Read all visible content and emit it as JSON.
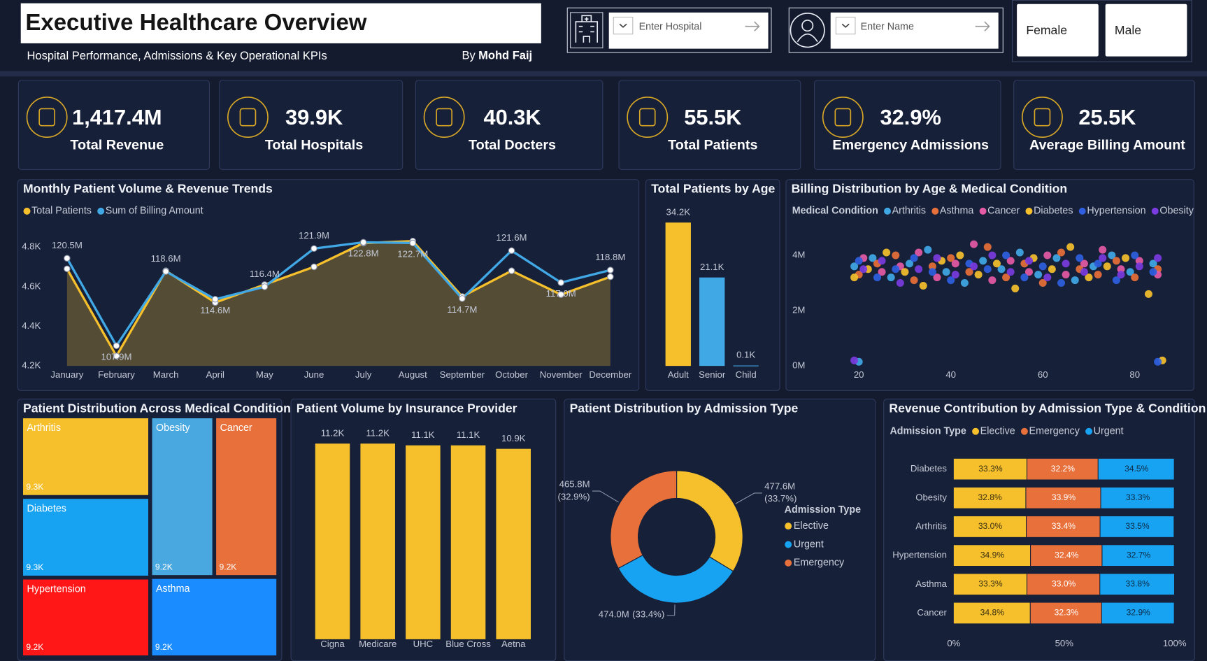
{
  "header": {
    "title": "Executive Healthcare Overview",
    "subtitle": "Hospital Performance, Admissions & Key Operational KPIs",
    "byline": "By",
    "author": "Mohd Faij"
  },
  "filters": {
    "hospital": "Enter Hospital",
    "name": "Enter Name",
    "gender": [
      "Female",
      "Male"
    ]
  },
  "kpis": [
    {
      "value": "1,417.4M",
      "label": "Total Revenue"
    },
    {
      "value": "39.9K",
      "label": "Total Hospitals"
    },
    {
      "value": "40.3K",
      "label": "Total Docters"
    },
    {
      "value": "55.5K",
      "label": "Total Patients"
    },
    {
      "value": "32.9%",
      "label": "Emergency Admissions"
    },
    {
      "value": "25.5K",
      "label": "Average Billing Amount"
    }
  ],
  "chart_data": [
    {
      "type": "line",
      "title": "Monthly Patient Volume & Revenue Trends",
      "categories": [
        "January",
        "February",
        "March",
        "April",
        "May",
        "June",
        "July",
        "August",
        "September",
        "October",
        "November",
        "December"
      ],
      "series": [
        {
          "name": "Total Patients",
          "color": "#f5c02c",
          "area": true,
          "values": [
            4690,
            4250,
            4680,
            4520,
            4610,
            4700,
            4820,
            4830,
            4550,
            4680,
            4560,
            4650
          ]
        },
        {
          "name": "Sum of Billing Amount",
          "color": "#41a8e6",
          "axis": "y2",
          "values": [
            120.5,
            107.9,
            118.6,
            114.6,
            116.4,
            121.9,
            122.8,
            122.7,
            114.7,
            121.6,
            117.0,
            118.8
          ],
          "value_labels": [
            "120.5M",
            "107.9M",
            "118.6M",
            "114.6M",
            "116.4M",
            "121.9M",
            "122.8M",
            "122.7M",
            "114.7M",
            "121.6M",
            "117.0M",
            "118.8M"
          ]
        }
      ],
      "ylim": [
        4200,
        4880
      ],
      "yticks": [
        {
          "value": 4200,
          "label": "4.2K"
        },
        {
          "value": 4400,
          "label": "4.4K"
        },
        {
          "value": 4600,
          "label": "4.6K"
        },
        {
          "value": 4800,
          "label": "4.8K"
        }
      ],
      "y2lim": [
        105,
        124.4
      ]
    },
    {
      "type": "bar",
      "title": "Total Patients by Age",
      "categories": [
        "Adult",
        "Senior",
        "Child"
      ],
      "values": [
        34200,
        21100,
        100
      ],
      "value_labels": [
        "34.2K",
        "21.1K",
        "0.1K"
      ],
      "colors": [
        "#f5c02c",
        "#41a8e6",
        "#41a8e6"
      ],
      "ylim": [
        0,
        36000
      ]
    },
    {
      "type": "scatter",
      "title": "Billing Distribution by Age & Medical Condition",
      "legend_title": "Medical Condition",
      "series": [
        {
          "name": "Arthritis",
          "color": "#41a8e6",
          "x": [
            19,
            23,
            27,
            31,
            35,
            39,
            43,
            47,
            51,
            55,
            59,
            63,
            67,
            71,
            75,
            79,
            84,
            20
          ],
          "values": [
            3600000,
            3900000,
            3200000,
            3700000,
            4200000,
            3400000,
            3000000,
            3800000,
            3500000,
            4100000,
            3300000,
            3900000,
            3100000,
            3600000,
            4000000,
            3400000,
            3700000,
            150000
          ]
        },
        {
          "name": "Asthma",
          "color": "#e8703a",
          "x": [
            20,
            24,
            28,
            32,
            36,
            40,
            44,
            48,
            52,
            56,
            60,
            64,
            68,
            72,
            76,
            80,
            85
          ],
          "values": [
            3300000,
            3700000,
            4000000,
            3100000,
            3600000,
            3900000,
            3400000,
            4300000,
            3200000,
            3700000,
            3000000,
            4100000,
            3500000,
            3300000,
            3800000,
            3200000,
            3500000
          ]
        },
        {
          "name": "Cancer",
          "color": "#e65aa6",
          "x": [
            21,
            25,
            29,
            33,
            37,
            41,
            45,
            49,
            53,
            57,
            61,
            65,
            69,
            73,
            77,
            81,
            85
          ],
          "values": [
            3900000,
            3400000,
            3600000,
            4100000,
            3200000,
            3700000,
            4400000,
            3100000,
            3800000,
            3400000,
            4000000,
            3300000,
            3700000,
            4200000,
            3500000,
            3800000,
            3300000
          ]
        },
        {
          "name": "Diabetes",
          "color": "#f5c02c",
          "x": [
            19,
            22,
            26,
            30,
            34,
            38,
            42,
            46,
            50,
            54,
            58,
            62,
            66,
            70,
            74,
            78,
            83,
            86
          ],
          "values": [
            3200000,
            3500000,
            4100000,
            3400000,
            2900000,
            3800000,
            4000000,
            3300000,
            3700000,
            2800000,
            3900000,
            3500000,
            4300000,
            3200000,
            3600000,
            3900000,
            2600000,
            200000
          ]
        },
        {
          "name": "Hypertension",
          "color": "#2f5fe0",
          "x": [
            20,
            24,
            28,
            32,
            36,
            40,
            44,
            48,
            52,
            56,
            60,
            64,
            68,
            72,
            76,
            80,
            84,
            85
          ],
          "values": [
            3800000,
            3200000,
            3500000,
            3900000,
            3400000,
            3100000,
            3700000,
            3500000,
            4000000,
            3200000,
            3600000,
            3000000,
            3900000,
            3700000,
            3100000,
            4000000,
            3400000,
            150000
          ]
        },
        {
          "name": "Obesity",
          "color": "#7a3be0",
          "x": [
            21,
            25,
            29,
            33,
            37,
            41,
            45,
            49,
            53,
            57,
            61,
            65,
            69,
            73,
            77,
            81,
            85,
            19
          ],
          "values": [
            3500000,
            3800000,
            3000000,
            3500000,
            3900000,
            3300000,
            3600000,
            4000000,
            3400000,
            3800000,
            3200000,
            3700000,
            3400000,
            3900000,
            3300000,
            3600000,
            3900000,
            200000
          ]
        }
      ],
      "xlim": [
        10,
        87
      ],
      "xticks": [
        20,
        40,
        60,
        80
      ],
      "ylim": [
        0,
        4900000
      ],
      "yticks": [
        {
          "value": 0,
          "label": "0M"
        },
        {
          "value": 2000000,
          "label": "2M"
        },
        {
          "value": 4000000,
          "label": "4M"
        }
      ]
    },
    {
      "type": "treemap",
      "title": "Patient Distribution Across Medical Conditions",
      "categories": [
        "Arthritis",
        "Diabetes",
        "Hypertension",
        "Obesity",
        "Cancer",
        "Asthma"
      ],
      "values": [
        9300,
        9300,
        9200,
        9200,
        9200,
        9200
      ],
      "value_labels": [
        "9.3K",
        "9.3K",
        "9.2K",
        "9.2K",
        "9.2K",
        "9.2K"
      ],
      "colors": [
        "#f5c02c",
        "#17a2f2",
        "#ff1616",
        "#4aa8e0",
        "#e8703a",
        "#1a8cff"
      ]
    },
    {
      "type": "bar",
      "title": "Patient Volume by Insurance Provider",
      "categories": [
        "Cigna",
        "Medicare",
        "UHC",
        "Blue Cross",
        "Aetna"
      ],
      "values": [
        11200,
        11200,
        11100,
        11100,
        10900
      ],
      "value_labels": [
        "11.2K",
        "11.2K",
        "11.1K",
        "11.1K",
        "10.9K"
      ],
      "color": "#f5c02c",
      "ylim": [
        0,
        11900
      ]
    },
    {
      "type": "donut",
      "title": "Patient Distribution by Admission Type",
      "legend_title": "Admission Type",
      "categories": [
        "Elective",
        "Urgent",
        "Emergency"
      ],
      "values": [
        477.6,
        474.0,
        465.8
      ],
      "value_labels": [
        "477.6M",
        "474.0M",
        "465.8M"
      ],
      "percent_labels": [
        "(33.7%)",
        "(33.4%)",
        "(32.9%)"
      ],
      "colors": [
        "#f5c02c",
        "#17a2f2",
        "#e8703a"
      ]
    },
    {
      "type": "stacked",
      "title": "Revenue Contribution by Admission Type & Condition",
      "legend_title": "Admission Type",
      "categories": [
        "Diabetes",
        "Obesity",
        "Arthritis",
        "Hypertension",
        "Asthma",
        "Cancer"
      ],
      "series": [
        {
          "name": "Elective",
          "color": "#f5c02c",
          "values": [
            33.3,
            32.8,
            33.0,
            34.9,
            33.3,
            34.8
          ],
          "value_labels": [
            "33.3%",
            "32.8%",
            "33.0%",
            "34.9%",
            "33.3%",
            "34.8%"
          ]
        },
        {
          "name": "Emergency",
          "color": "#e8703a",
          "values": [
            32.2,
            33.9,
            33.4,
            32.4,
            33.0,
            32.3
          ],
          "value_labels": [
            "32.2%",
            "33.9%",
            "33.4%",
            "32.4%",
            "33.0%",
            "32.3%"
          ]
        },
        {
          "name": "Urgent",
          "color": "#17a2f2",
          "values": [
            34.5,
            33.3,
            33.5,
            32.7,
            33.8,
            32.9
          ],
          "value_labels": [
            "34.5%",
            "33.3%",
            "33.5%",
            "32.7%",
            "33.8%",
            "32.9%"
          ]
        }
      ],
      "xlim": [
        0,
        100
      ],
      "xticks": [
        {
          "value": 0,
          "label": "0%"
        },
        {
          "value": 50,
          "label": "50%"
        },
        {
          "value": 100,
          "label": "100%"
        }
      ]
    }
  ]
}
